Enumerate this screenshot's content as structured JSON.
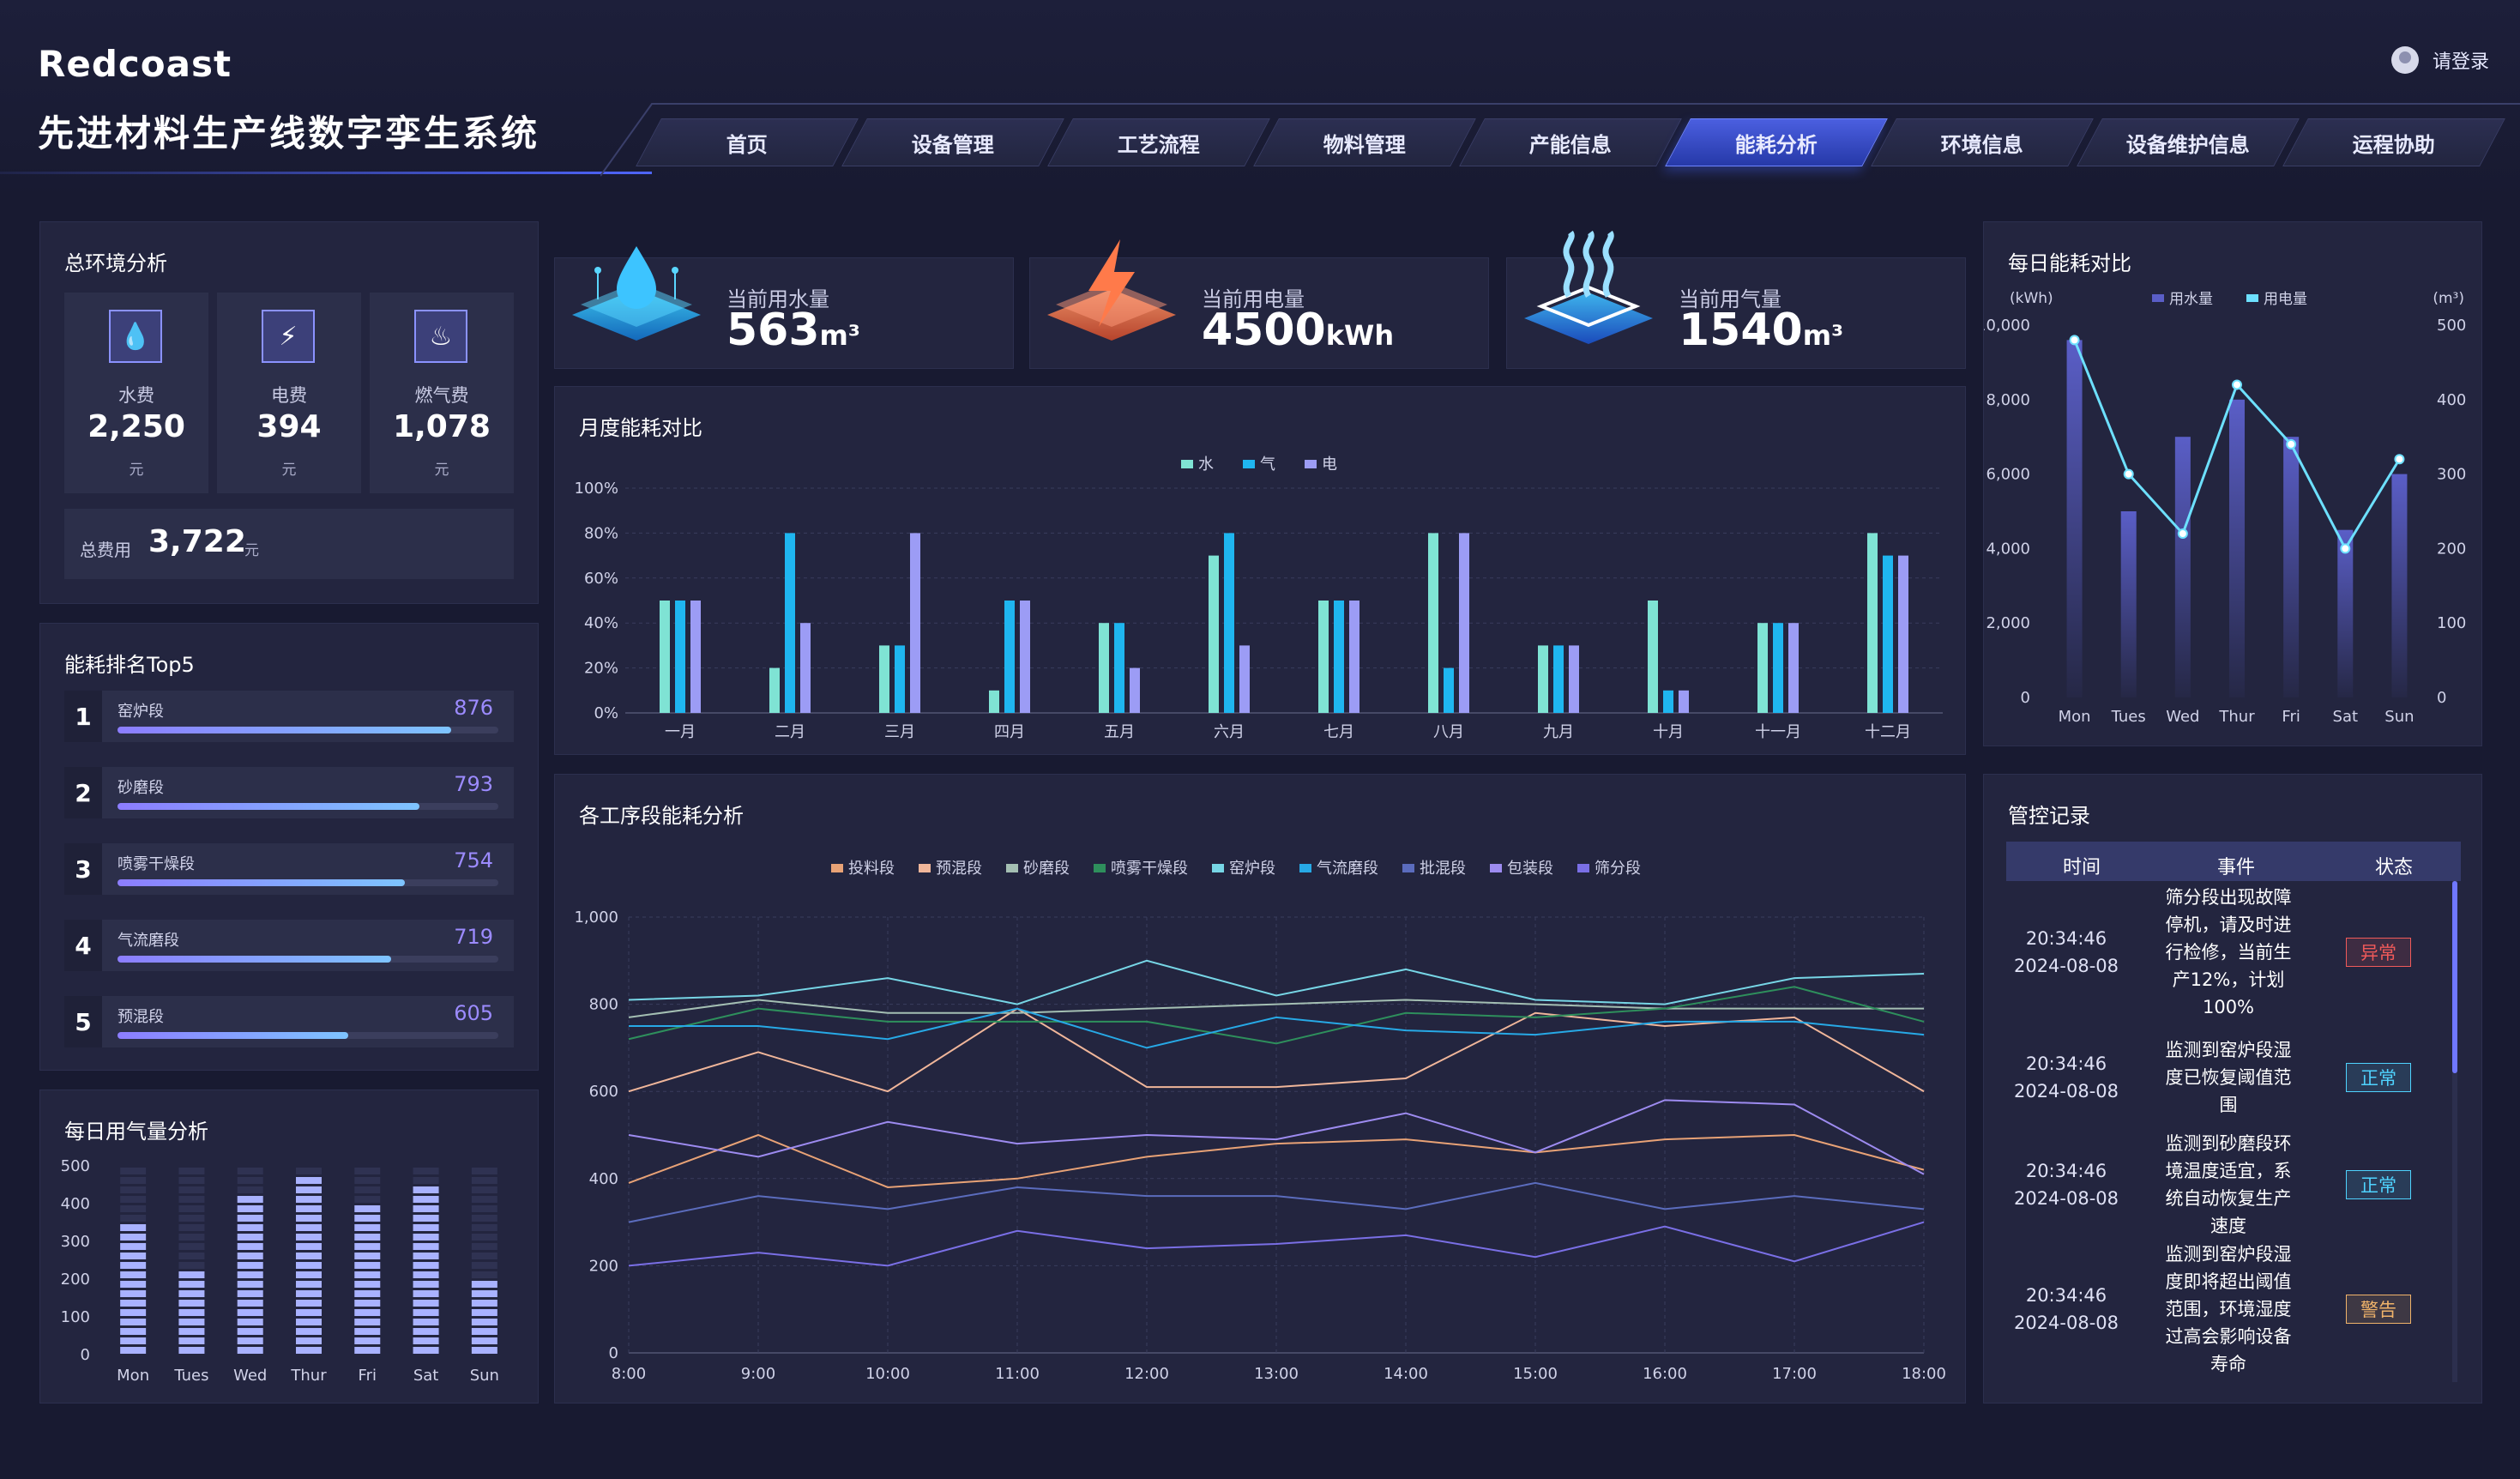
{
  "header": {
    "logo": "Redcoast",
    "title": "先进材料生产线数字孪生系统",
    "login": "请登录"
  },
  "nav": {
    "items": [
      {
        "label": "首页",
        "active": false
      },
      {
        "label": "设备管理",
        "active": false
      },
      {
        "label": "工艺流程",
        "active": false
      },
      {
        "label": "物料管理",
        "active": false
      },
      {
        "label": "产能信息",
        "active": false
      },
      {
        "label": "能耗分析",
        "active": true
      },
      {
        "label": "环境信息",
        "active": false
      },
      {
        "label": "设备维护信息",
        "active": false
      },
      {
        "label": "运程协助",
        "active": false
      }
    ]
  },
  "env": {
    "title": "总环境分析",
    "cards": [
      {
        "icon": "water-drop-icon",
        "label": "水费",
        "value": "2,250",
        "unit": "元"
      },
      {
        "icon": "lightning-icon",
        "label": "电费",
        "value": "394",
        "unit": "元"
      },
      {
        "icon": "gas-flame-icon",
        "label": "燃气费",
        "value": "1,078",
        "unit": "元"
      }
    ],
    "total_label": "总费用",
    "total_value": "3,722",
    "total_unit": "元"
  },
  "rank": {
    "title": "能耗排名Top5",
    "max": 1000,
    "items": [
      {
        "num": "1",
        "name": "窑炉段",
        "value": 876
      },
      {
        "num": "2",
        "name": "砂磨段",
        "value": 793
      },
      {
        "num": "3",
        "name": "喷雾干燥段",
        "value": 754
      },
      {
        "num": "4",
        "name": "气流磨段",
        "value": 719
      },
      {
        "num": "5",
        "name": "预混段",
        "value": 605
      }
    ]
  },
  "stats": [
    {
      "label": "当前用水量",
      "value": "563",
      "unit": "m³",
      "icon": "water-3d-icon"
    },
    {
      "label": "当前用电量",
      "value": "4500",
      "unit": "kWh",
      "icon": "electric-3d-icon"
    },
    {
      "label": "当前用气量",
      "value": "1540",
      "unit": "m³",
      "icon": "gas-3d-icon"
    }
  ],
  "records": {
    "title": "管控记录",
    "headers": [
      "时间",
      "事件",
      "状态"
    ],
    "items": [
      {
        "time": "20:34:46",
        "date": "2024-08-08",
        "event": [
          "筛分段出现故障",
          "停机，请及时进",
          "行检修，当前生",
          "产12%，计划",
          "100%"
        ],
        "status": "异常",
        "color": "#f05a5a"
      },
      {
        "time": "20:34:46",
        "date": "2024-08-08",
        "event": [
          "监测到窑炉段湿",
          "度已恢复阈值范",
          "围"
        ],
        "status": "正常",
        "color": "#4fd3ff"
      },
      {
        "time": "20:34:46",
        "date": "2024-08-08",
        "event": [
          "监测到砂磨段环",
          "境温度适宜，系",
          "统自动恢复生产",
          "速度"
        ],
        "status": "正常",
        "color": "#4fd3ff"
      },
      {
        "time": "20:34:46",
        "date": "2024-08-08",
        "event": [
          "监测到窑炉段湿",
          "度即将超出阈值",
          "范围，环境湿度",
          "过高会影响设备",
          "寿命"
        ],
        "status": "警告",
        "color": "#f0b36a"
      }
    ]
  },
  "chart_data": [
    {
      "id": "gas",
      "type": "bar",
      "title": "每日用气量分析",
      "categories": [
        "Mon",
        "Tues",
        "Wed",
        "Thur",
        "Fri",
        "Sat",
        "Sun"
      ],
      "values": [
        350,
        220,
        420,
        480,
        390,
        460,
        200
      ],
      "ylim": [
        0,
        500
      ],
      "yticks": [
        0,
        100,
        200,
        300,
        400,
        500
      ],
      "colors": {
        "bar": "#a9b2ff",
        "track": "#2f3252"
      }
    },
    {
      "id": "monthly",
      "type": "bar",
      "title": "月度能耗对比",
      "categories": [
        "一月",
        "二月",
        "三月",
        "四月",
        "五月",
        "六月",
        "七月",
        "八月",
        "九月",
        "十月",
        "十一月",
        "十二月"
      ],
      "series": [
        {
          "name": "水",
          "color": "#7fe3d4",
          "values": [
            50,
            20,
            30,
            10,
            40,
            70,
            50,
            80,
            30,
            50,
            40,
            80
          ]
        },
        {
          "name": "气",
          "color": "#1fb6f0",
          "values": [
            50,
            80,
            30,
            50,
            40,
            80,
            50,
            20,
            30,
            10,
            40,
            70
          ]
        },
        {
          "name": "电",
          "color": "#9c9cf5",
          "values": [
            50,
            40,
            80,
            50,
            20,
            30,
            50,
            80,
            30,
            10,
            40,
            70
          ]
        }
      ],
      "ylim": [
        0,
        100
      ],
      "yticks": [
        "0%",
        "20%",
        "40%",
        "60%",
        "80%",
        "100%"
      ]
    },
    {
      "id": "process",
      "type": "line",
      "title": "各工序段能耗分析",
      "x": [
        "8:00",
        "9:00",
        "10:00",
        "11:00",
        "12:00",
        "13:00",
        "14:00",
        "15:00",
        "16:00",
        "17:00",
        "18:00"
      ],
      "ylim": [
        0,
        1000
      ],
      "yticks": [
        "0",
        "200",
        "400",
        "600",
        "800",
        "1,000"
      ],
      "series": [
        {
          "name": "投料段",
          "color": "#e8a276",
          "values": [
            390,
            500,
            380,
            400,
            450,
            480,
            490,
            460,
            490,
            500,
            420
          ]
        },
        {
          "name": "预混段",
          "color": "#f0b69a",
          "values": [
            600,
            690,
            600,
            790,
            610,
            610,
            630,
            780,
            750,
            770,
            600
          ]
        },
        {
          "name": "砂磨段",
          "color": "#a4bfb3",
          "values": [
            770,
            810,
            780,
            780,
            790,
            800,
            810,
            800,
            790,
            790,
            790
          ]
        },
        {
          "name": "喷雾干燥段",
          "color": "#2e8f5c",
          "values": [
            720,
            790,
            760,
            760,
            760,
            710,
            780,
            770,
            790,
            840,
            760
          ]
        },
        {
          "name": "窑炉段",
          "color": "#77d6e6",
          "values": [
            810,
            820,
            860,
            800,
            900,
            820,
            880,
            810,
            800,
            860,
            870
          ]
        },
        {
          "name": "气流磨段",
          "color": "#27a9e6",
          "values": [
            750,
            750,
            720,
            790,
            700,
            770,
            740,
            730,
            760,
            760,
            730
          ]
        },
        {
          "name": "批混段",
          "color": "#5b6cbd",
          "values": [
            300,
            360,
            330,
            380,
            360,
            360,
            330,
            390,
            330,
            360,
            330
          ]
        },
        {
          "name": "包装段",
          "color": "#9d8bf0",
          "values": [
            500,
            450,
            530,
            480,
            500,
            490,
            550,
            460,
            580,
            570,
            410
          ]
        },
        {
          "name": "筛分段",
          "color": "#7a6fe6",
          "values": [
            200,
            230,
            200,
            280,
            240,
            250,
            270,
            220,
            290,
            210,
            300
          ]
        }
      ]
    },
    {
      "id": "daily",
      "type": "bar+line",
      "title": "每日能耗对比",
      "categories": [
        "Mon",
        "Tues",
        "Wed",
        "Thur",
        "Fri",
        "Sat",
        "Sun"
      ],
      "ylabel_left": "(kWh)",
      "ylabel_right": "(m³)",
      "yticks_left": [
        "0",
        "2,000",
        "4,000",
        "6,000",
        "8,000",
        "10,000"
      ],
      "yticks_right": [
        "0",
        "100",
        "200",
        "300",
        "400",
        "500"
      ],
      "ylim_left": [
        0,
        10000
      ],
      "ylim_right": [
        0,
        500
      ],
      "series": [
        {
          "name": "用水量",
          "kind": "bar",
          "axis": "left",
          "color": "#5a5ec7",
          "values": [
            9600,
            5000,
            7000,
            8000,
            7000,
            4500,
            6000
          ]
        },
        {
          "name": "用电量",
          "kind": "line",
          "axis": "right",
          "color": "#6de0ff",
          "values": [
            480,
            300,
            220,
            420,
            340,
            200,
            320
          ]
        }
      ]
    }
  ]
}
